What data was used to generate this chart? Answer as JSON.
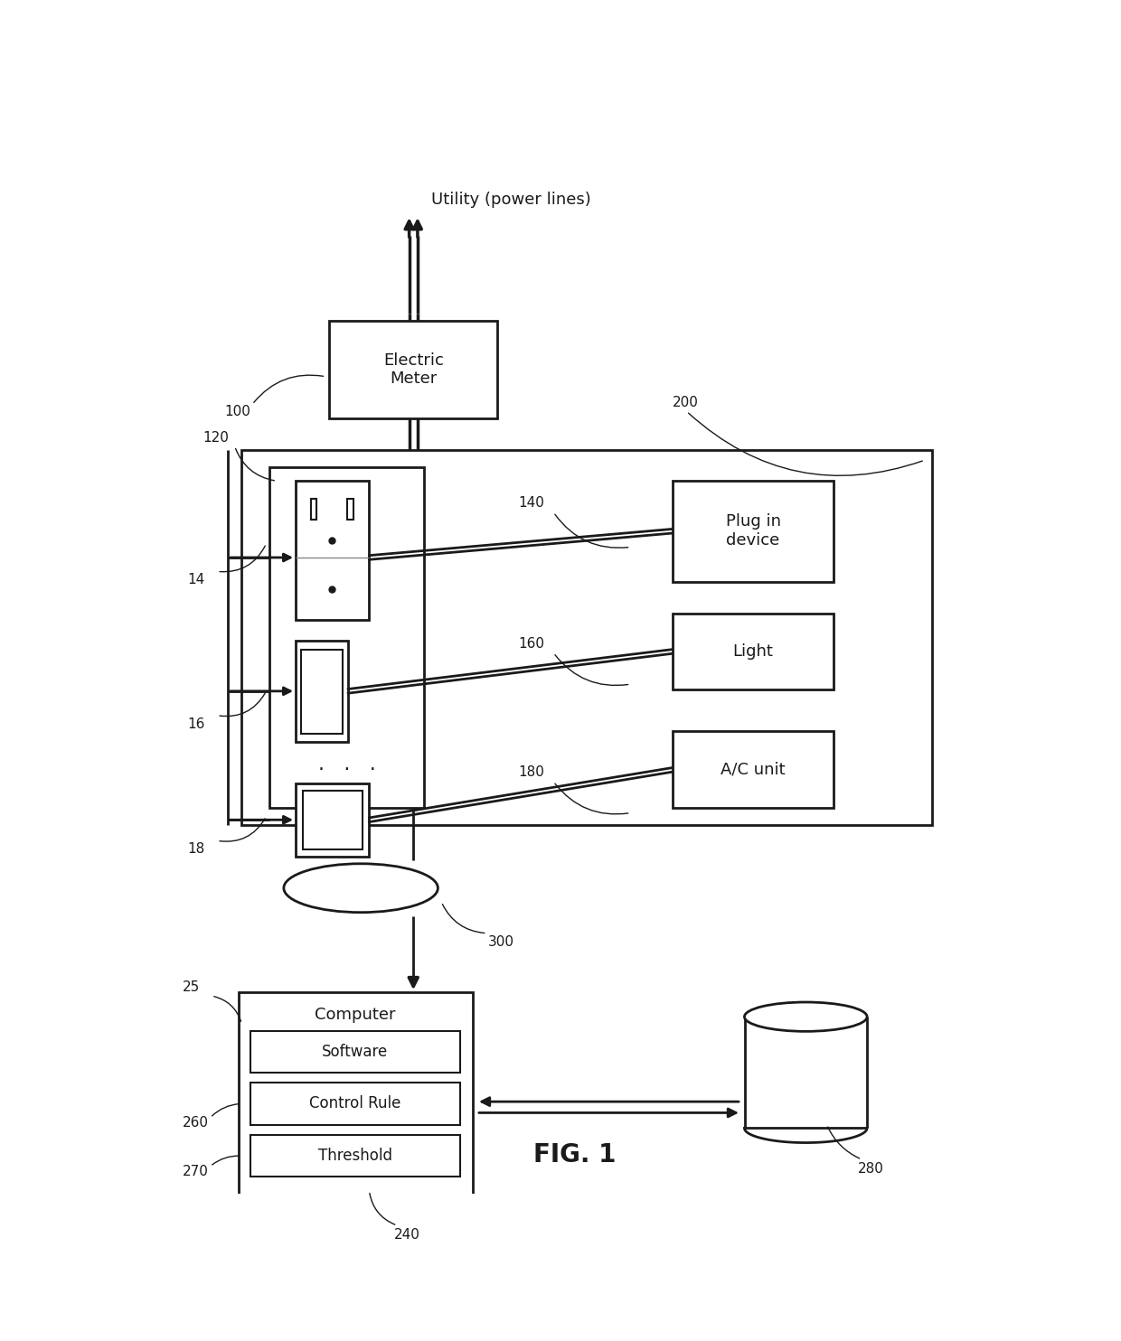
{
  "fig_title": "FIG. 1",
  "utility_label": "Utility (power lines)",
  "electric_meter_label": "Electric\nMeter",
  "label_100": "100",
  "label_200": "200",
  "label_120": "120",
  "label_14": "14",
  "label_16": "16",
  "label_18": "18",
  "label_140": "140",
  "label_160": "160",
  "label_180": "180",
  "label_25": "25",
  "label_240": "240",
  "label_260": "260",
  "label_270": "270",
  "label_280": "280",
  "label_300": "300",
  "plug_in_label": "Plug in\ndevice",
  "light_label": "Light",
  "ac_label": "A/C unit",
  "computer_label": "Computer",
  "software_label": "Software",
  "control_rule_label": "Control Rule",
  "threshold_label": "Threshold",
  "line_color": "#1a1a1a",
  "text_color": "#1a1a1a"
}
